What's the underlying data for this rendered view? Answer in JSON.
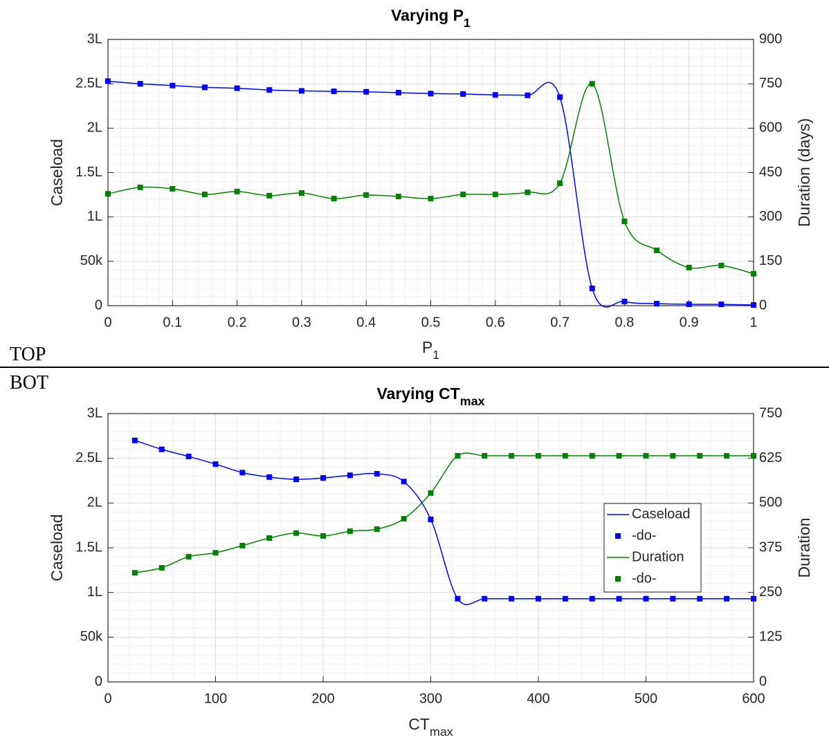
{
  "annotations": [
    "TOP",
    "BOT"
  ],
  "chart_data": [
    {
      "type": "line",
      "title": "Varying P",
      "title_subscript": "1",
      "xlabel": "P",
      "xlabel_subscript": "1",
      "ylabel": "Caseload",
      "y2label": "Duration (days)",
      "x": [
        0,
        0.05,
        0.1,
        0.15,
        0.2,
        0.25,
        0.3,
        0.35,
        0.4,
        0.45,
        0.5,
        0.55,
        0.6,
        0.65,
        0.7,
        0.75,
        0.8,
        0.85,
        0.9,
        0.95,
        1
      ],
      "xlim": [
        0,
        1
      ],
      "xticks": [
        0,
        0.1,
        0.2,
        0.3,
        0.4,
        0.5,
        0.6,
        0.7,
        0.8,
        0.9,
        1
      ],
      "ylim": [
        0,
        300000
      ],
      "yticks": [
        0,
        {
          "value": 50000,
          "label": "50k"
        },
        {
          "value": 100000,
          "label": "1L"
        },
        {
          "value": 150000,
          "label": "1.5L"
        },
        {
          "value": 200000,
          "label": "2L"
        },
        {
          "value": 250000,
          "label": "2.5L"
        },
        {
          "value": 300000,
          "label": "3L"
        }
      ],
      "y2lim": [
        0,
        900
      ],
      "y2ticks": [
        0,
        150,
        300,
        450,
        600,
        750,
        900
      ],
      "grid": true,
      "minor_grid": true,
      "series": [
        {
          "name": "Caseload",
          "color": "#0000ff",
          "values": [
            253000,
            250000,
            248000,
            246000,
            245000,
            243000,
            242000,
            241500,
            241000,
            240000,
            239000,
            238500,
            237500,
            237000,
            235000,
            19500,
            4700,
            2300,
            1600,
            1500,
            800
          ]
        },
        {
          "name": "Duration",
          "color": "#008000",
          "axis": "y2",
          "values": [
            378,
            400,
            395,
            376,
            386,
            372,
            381,
            362,
            374,
            369,
            362,
            376,
            376,
            383,
            414,
            750,
            285,
            187,
            129,
            136,
            108
          ]
        }
      ]
    },
    {
      "type": "line",
      "title": "Varying CT",
      "title_subscript": "max",
      "xlabel": "CT",
      "xlabel_subscript": "max",
      "ylabel": "Caseload",
      "y2label": "Duration",
      "x": [
        25,
        50,
        75,
        100,
        125,
        150,
        175,
        200,
        225,
        250,
        275,
        300,
        325,
        350,
        375,
        400,
        425,
        450,
        475,
        500,
        525,
        550,
        575,
        600
      ],
      "xlim": [
        0,
        600
      ],
      "xticks": [
        0,
        100,
        200,
        300,
        400,
        500,
        600
      ],
      "ylim": [
        0,
        300000
      ],
      "yticks": [
        0,
        {
          "value": 50000,
          "label": "50k"
        },
        {
          "value": 100000,
          "label": "1L"
        },
        {
          "value": 150000,
          "label": "1.5L"
        },
        {
          "value": 200000,
          "label": "2L"
        },
        {
          "value": 250000,
          "label": "2.5L"
        },
        {
          "value": 300000,
          "label": "3L"
        }
      ],
      "y2lim": [
        0,
        750
      ],
      "y2ticks": [
        0,
        125,
        250,
        375,
        500,
        625,
        750
      ],
      "grid": true,
      "minor_grid": true,
      "legend": "east",
      "series": [
        {
          "name": "Caseload",
          "marker_label": "-do-",
          "color": "#0000ff",
          "values": [
            270000,
            260000,
            252000,
            243500,
            234000,
            229000,
            226500,
            228000,
            231000,
            232700,
            224000,
            181700,
            93000,
            93000,
            93000,
            93000,
            93000,
            93000,
            93000,
            93000,
            93000,
            93000,
            93000,
            93000
          ]
        },
        {
          "name": "Duration",
          "marker_label": "-do-",
          "color": "#008000",
          "axis": "y2",
          "values": [
            305,
            319,
            350,
            361,
            381,
            402,
            416,
            408,
            421,
            427,
            456,
            528,
            632,
            632,
            632,
            632,
            632,
            632,
            632,
            632,
            632,
            632,
            632,
            632
          ]
        }
      ]
    }
  ]
}
